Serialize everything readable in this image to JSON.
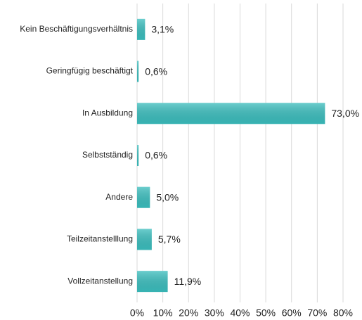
{
  "chart_data": {
    "type": "bar",
    "orientation": "horizontal",
    "categories": [
      "Kein Beschäftigungsverhältnis",
      "Geringfügig beschäftigt",
      "In Ausbildung",
      "Selbstständig",
      "Andere",
      "Teilzeitanstelllung",
      "Vollzeitanstellung"
    ],
    "values": [
      3.1,
      0.6,
      73.0,
      0.6,
      5.0,
      5.7,
      11.9
    ],
    "value_labels": [
      "3,1%",
      "0,6%",
      "73,0%",
      "0,6%",
      "5,0%",
      "5,7%",
      "11,9%"
    ],
    "color": "#3bbdbd",
    "xlim": [
      0,
      80
    ],
    "xticks": [
      {
        "value": 0,
        "label": "0%"
      },
      {
        "value": 10,
        "label": "10%"
      },
      {
        "value": 20,
        "label": "20%"
      },
      {
        "value": 30,
        "label": "30%"
      },
      {
        "value": 40,
        "label": "40%"
      },
      {
        "value": 50,
        "label": "50%"
      },
      {
        "value": 60,
        "label": "60%"
      },
      {
        "value": 70,
        "label": "70%"
      },
      {
        "value": 80,
        "label": "80%"
      }
    ],
    "grid": true
  }
}
